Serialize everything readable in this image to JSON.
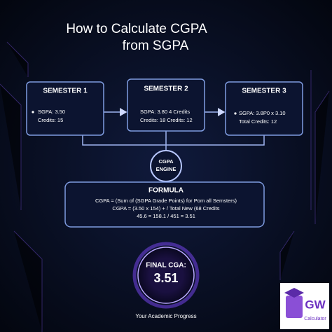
{
  "title": [
    "How to Calculate CGPA",
    "from SGPA"
  ],
  "semesters": [
    {
      "heading": "SEMESTER 1",
      "lines": [
        "SGPA: 3.50",
        "Credits: 15"
      ]
    },
    {
      "heading": "SEMESTER 2",
      "lines": [
        "SGPA: 3.80 4 Credits",
        "Credits: 18 Credits: 12"
      ]
    },
    {
      "heading": "SEMESTER 3",
      "lines": [
        "SGPA: 3.8P0 x 3.10",
        "Total Credits: 12"
      ]
    }
  ],
  "engine": [
    "CGPA",
    "ENGINE"
  ],
  "formula": {
    "heading": "FORMULA",
    "lines": [
      "CGPA = (Sum of (SGPA Grade Points) for Pom all Semsters)",
      "CGPA = (3.50 x 154) + / Total New (68 Credits",
      "45.6 = 158.1 / 451 = 3.51"
    ]
  },
  "final": {
    "label": "FINAL CGA:",
    "value": "3.51"
  },
  "footer": "Your Academic Progress",
  "logo": {
    "mark": "GW",
    "caption": "Calculator"
  }
}
